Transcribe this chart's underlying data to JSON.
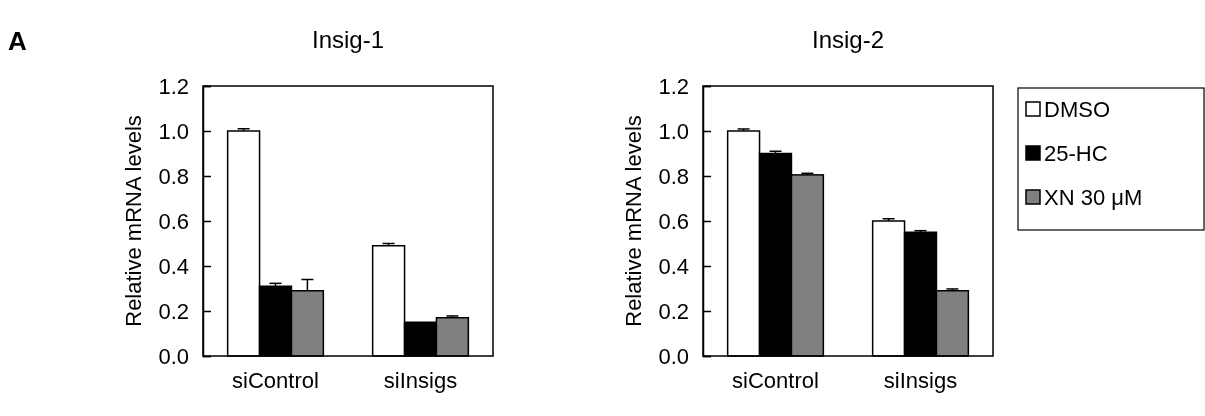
{
  "chart_data": [
    {
      "type": "bar",
      "title": "Insig-1",
      "ylabel": "Relative mRNA levels",
      "annotations": [
        "A"
      ],
      "categories": [
        "siControl",
        "siInsigs"
      ],
      "ylim": [
        0,
        1.2
      ],
      "yticks": [
        {
          "value": 0,
          "label": "0.0"
        },
        {
          "value": 0.2,
          "label": "0.2"
        },
        {
          "value": 0.4,
          "label": "0.4"
        },
        {
          "value": 0.6,
          "label": "0.6"
        },
        {
          "value": 0.8,
          "label": "0.8"
        },
        {
          "value": 1.0,
          "label": "1.0"
        },
        {
          "value": 1.2,
          "label": "1.2"
        }
      ],
      "legend": false,
      "series": [
        {
          "color": "#ffffff",
          "values": [
            1.0,
            0.49
          ],
          "errors": [
            0.01,
            0.01
          ]
        },
        {
          "color": "#000000",
          "values": [
            0.31,
            0.15
          ],
          "errors": [
            0.013,
            null
          ]
        },
        {
          "color": "#808080",
          "values": [
            0.29,
            0.17
          ],
          "errors": [
            0.05,
            0.008
          ]
        }
      ]
    },
    {
      "type": "bar",
      "title": "Insig-2",
      "ylabel": "Relative mRNA levels",
      "categories": [
        "siControl",
        "siInsigs"
      ],
      "ylim": [
        0,
        1.2
      ],
      "yticks": [
        {
          "value": 0,
          "label": "0.0"
        },
        {
          "value": 0.2,
          "label": "0.2"
        },
        {
          "value": 0.4,
          "label": "0.4"
        },
        {
          "value": 0.6,
          "label": "0.6"
        },
        {
          "value": 0.8,
          "label": "0.8"
        },
        {
          "value": 1.0,
          "label": "1.0"
        },
        {
          "value": 1.2,
          "label": "1.2"
        }
      ],
      "legend": "right",
      "series": [
        {
          "name": "DMSO",
          "color": "#ffffff",
          "values": [
            1.0,
            0.6
          ],
          "errors": [
            0.009,
            0.01
          ]
        },
        {
          "name": "25-HC",
          "color": "#000000",
          "values": [
            0.9,
            0.55
          ],
          "errors": [
            0.01,
            0.007
          ]
        },
        {
          "name": "XN 30 μM",
          "color": "#808080",
          "values": [
            0.805,
            0.29
          ],
          "errors": [
            0.007,
            0.008
          ]
        }
      ]
    }
  ]
}
